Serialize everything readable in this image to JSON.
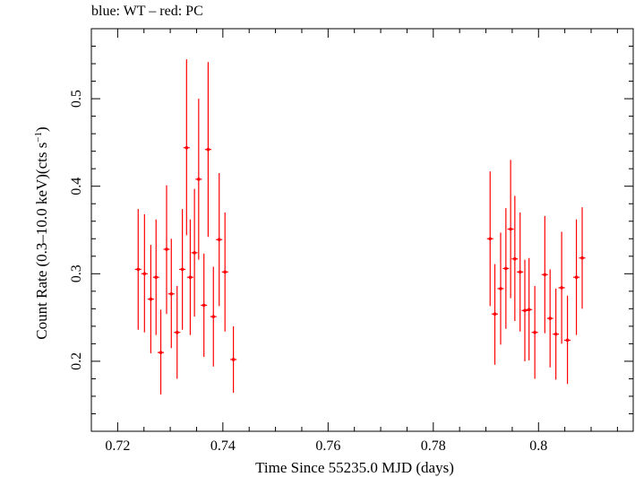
{
  "chart_data": {
    "type": "scatter",
    "title": "blue: WT – red: PC",
    "xlabel": "Time Since 55235.0 MJD (days)",
    "ylabel_main": "Count Rate (0.3–10.0 keV)(cts s",
    "ylabel_sup": "−1",
    "ylabel_end": ")",
    "xlim": [
      0.715,
      0.818
    ],
    "ylim": [
      0.12,
      0.58
    ],
    "x_ticks": [
      0.72,
      0.74,
      0.76,
      0.78,
      0.8
    ],
    "x_tick_labels": [
      "0.72",
      "0.74",
      "0.76",
      "0.78",
      "0.8"
    ],
    "y_ticks": [
      0.2,
      0.3,
      0.4,
      0.5
    ],
    "y_tick_labels": [
      "0.2",
      "0.3",
      "0.4",
      "0.5"
    ],
    "grid": false,
    "series": [
      {
        "color": "#ff0000",
        "xerr": 0.0006,
        "points": [
          {
            "x": 0.7239,
            "y": 0.305,
            "lo": 0.236,
            "hi": 0.374
          },
          {
            "x": 0.7251,
            "y": 0.3,
            "lo": 0.233,
            "hi": 0.368
          },
          {
            "x": 0.7263,
            "y": 0.271,
            "lo": 0.209,
            "hi": 0.333
          },
          {
            "x": 0.7273,
            "y": 0.296,
            "lo": 0.23,
            "hi": 0.362
          },
          {
            "x": 0.7282,
            "y": 0.21,
            "lo": 0.162,
            "hi": 0.259
          },
          {
            "x": 0.7293,
            "y": 0.328,
            "lo": 0.254,
            "hi": 0.401
          },
          {
            "x": 0.7302,
            "y": 0.277,
            "lo": 0.215,
            "hi": 0.34
          },
          {
            "x": 0.7313,
            "y": 0.233,
            "lo": 0.18,
            "hi": 0.286
          },
          {
            "x": 0.7323,
            "y": 0.305,
            "lo": 0.236,
            "hi": 0.374
          },
          {
            "x": 0.7331,
            "y": 0.444,
            "lo": 0.344,
            "hi": 0.545
          },
          {
            "x": 0.7338,
            "y": 0.296,
            "lo": 0.23,
            "hi": 0.362
          },
          {
            "x": 0.7346,
            "y": 0.324,
            "lo": 0.251,
            "hi": 0.397
          },
          {
            "x": 0.7354,
            "y": 0.408,
            "lo": 0.316,
            "hi": 0.5
          },
          {
            "x": 0.7364,
            "y": 0.264,
            "lo": 0.205,
            "hi": 0.323
          },
          {
            "x": 0.7372,
            "y": 0.442,
            "lo": 0.342,
            "hi": 0.542
          },
          {
            "x": 0.7382,
            "y": 0.251,
            "lo": 0.194,
            "hi": 0.308
          },
          {
            "x": 0.7393,
            "y": 0.339,
            "lo": 0.263,
            "hi": 0.415
          },
          {
            "x": 0.7404,
            "y": 0.302,
            "lo": 0.234,
            "hi": 0.37
          },
          {
            "x": 0.742,
            "y": 0.202,
            "lo": 0.164,
            "hi": 0.24
          },
          {
            "x": 0.7908,
            "y": 0.34,
            "lo": 0.263,
            "hi": 0.417
          },
          {
            "x": 0.7917,
            "y": 0.254,
            "lo": 0.196,
            "hi": 0.311
          },
          {
            "x": 0.7928,
            "y": 0.283,
            "lo": 0.219,
            "hi": 0.347
          },
          {
            "x": 0.7938,
            "y": 0.306,
            "lo": 0.237,
            "hi": 0.375
          },
          {
            "x": 0.7947,
            "y": 0.351,
            "lo": 0.272,
            "hi": 0.43
          },
          {
            "x": 0.7955,
            "y": 0.317,
            "lo": 0.246,
            "hi": 0.389
          },
          {
            "x": 0.7965,
            "y": 0.302,
            "lo": 0.234,
            "hi": 0.37
          },
          {
            "x": 0.7974,
            "y": 0.258,
            "lo": 0.2,
            "hi": 0.316
          },
          {
            "x": 0.7982,
            "y": 0.259,
            "lo": 0.201,
            "hi": 0.318
          },
          {
            "x": 0.7993,
            "y": 0.233,
            "lo": 0.18,
            "hi": 0.286
          },
          {
            "x": 0.8012,
            "y": 0.299,
            "lo": 0.232,
            "hi": 0.366
          },
          {
            "x": 0.8022,
            "y": 0.249,
            "lo": 0.193,
            "hi": 0.305
          },
          {
            "x": 0.8033,
            "y": 0.231,
            "lo": 0.179,
            "hi": 0.283
          },
          {
            "x": 0.8044,
            "y": 0.284,
            "lo": 0.22,
            "hi": 0.348
          },
          {
            "x": 0.8055,
            "y": 0.224,
            "lo": 0.174,
            "hi": 0.275
          },
          {
            "x": 0.8072,
            "y": 0.296,
            "lo": 0.23,
            "hi": 0.362
          },
          {
            "x": 0.8083,
            "y": 0.318,
            "lo": 0.26,
            "hi": 0.376
          }
        ]
      }
    ]
  }
}
